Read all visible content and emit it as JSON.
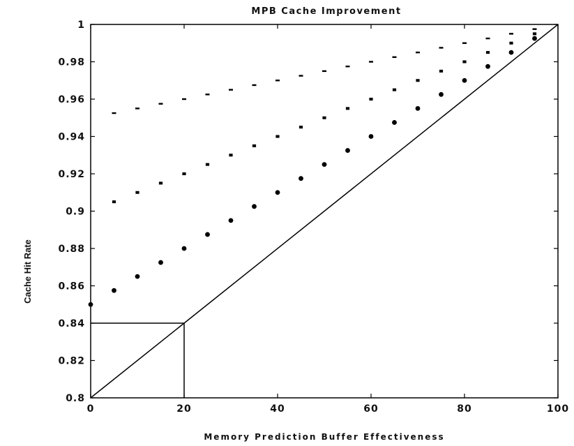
{
  "chart_data": {
    "type": "scatter",
    "title": "MPB Cache Improvement",
    "xlabel": "Memory Prediction Buffer Effectiveness",
    "ylabel": "Cache Hit Rate",
    "xlim": [
      0,
      100
    ],
    "ylim": [
      0.8,
      1.0
    ],
    "x_ticks": [
      0,
      20,
      40,
      60,
      80,
      100
    ],
    "x_tick_labels": [
      "0",
      "20",
      "40",
      "60",
      "80",
      "100"
    ],
    "y_ticks": [
      0.8,
      0.82,
      0.84,
      0.86,
      0.88,
      0.9,
      0.92,
      0.94,
      0.96,
      0.98,
      1.0
    ],
    "y_tick_labels": [
      "0.8",
      "0.82",
      "0.84",
      "0.86",
      "0.88",
      "0.9",
      "0.92",
      "0.94",
      "0.96",
      "0.98",
      "1"
    ],
    "grid": false,
    "series": [
      {
        "marker": "dash",
        "x": [
          5,
          10,
          15,
          20,
          25,
          30,
          35,
          40,
          45,
          50,
          55,
          60,
          65,
          70,
          75,
          80,
          85,
          90,
          95
        ],
        "y": [
          0.9525,
          0.955,
          0.9575,
          0.96,
          0.9625,
          0.965,
          0.9675,
          0.97,
          0.9725,
          0.975,
          0.9775,
          0.98,
          0.9825,
          0.985,
          0.9875,
          0.99,
          0.9925,
          0.995,
          0.9975
        ]
      },
      {
        "marker": "square",
        "x": [
          5,
          10,
          15,
          20,
          25,
          30,
          35,
          40,
          45,
          50,
          55,
          60,
          65,
          70,
          75,
          80,
          85,
          90,
          95
        ],
        "y": [
          0.905,
          0.91,
          0.915,
          0.92,
          0.925,
          0.93,
          0.935,
          0.94,
          0.945,
          0.95,
          0.955,
          0.96,
          0.965,
          0.97,
          0.975,
          0.98,
          0.985,
          0.99,
          0.995
        ]
      },
      {
        "marker": "circle",
        "x": [
          0,
          5,
          10,
          15,
          20,
          25,
          30,
          35,
          40,
          45,
          50,
          55,
          60,
          65,
          70,
          75,
          80,
          85,
          90,
          95
        ],
        "y": [
          0.85,
          0.8575,
          0.865,
          0.8725,
          0.88,
          0.8875,
          0.895,
          0.9025,
          0.91,
          0.9175,
          0.925,
          0.9325,
          0.94,
          0.9475,
          0.955,
          0.9625,
          0.97,
          0.9775,
          0.985,
          0.9925
        ]
      }
    ],
    "reference_lines": [
      {
        "kind": "diagonal",
        "x": [
          0,
          100
        ],
        "y": [
          0.8,
          1.0
        ]
      },
      {
        "kind": "guide",
        "x": [
          0,
          20,
          20
        ],
        "y": [
          0.84,
          0.84,
          0.8
        ]
      }
    ]
  }
}
